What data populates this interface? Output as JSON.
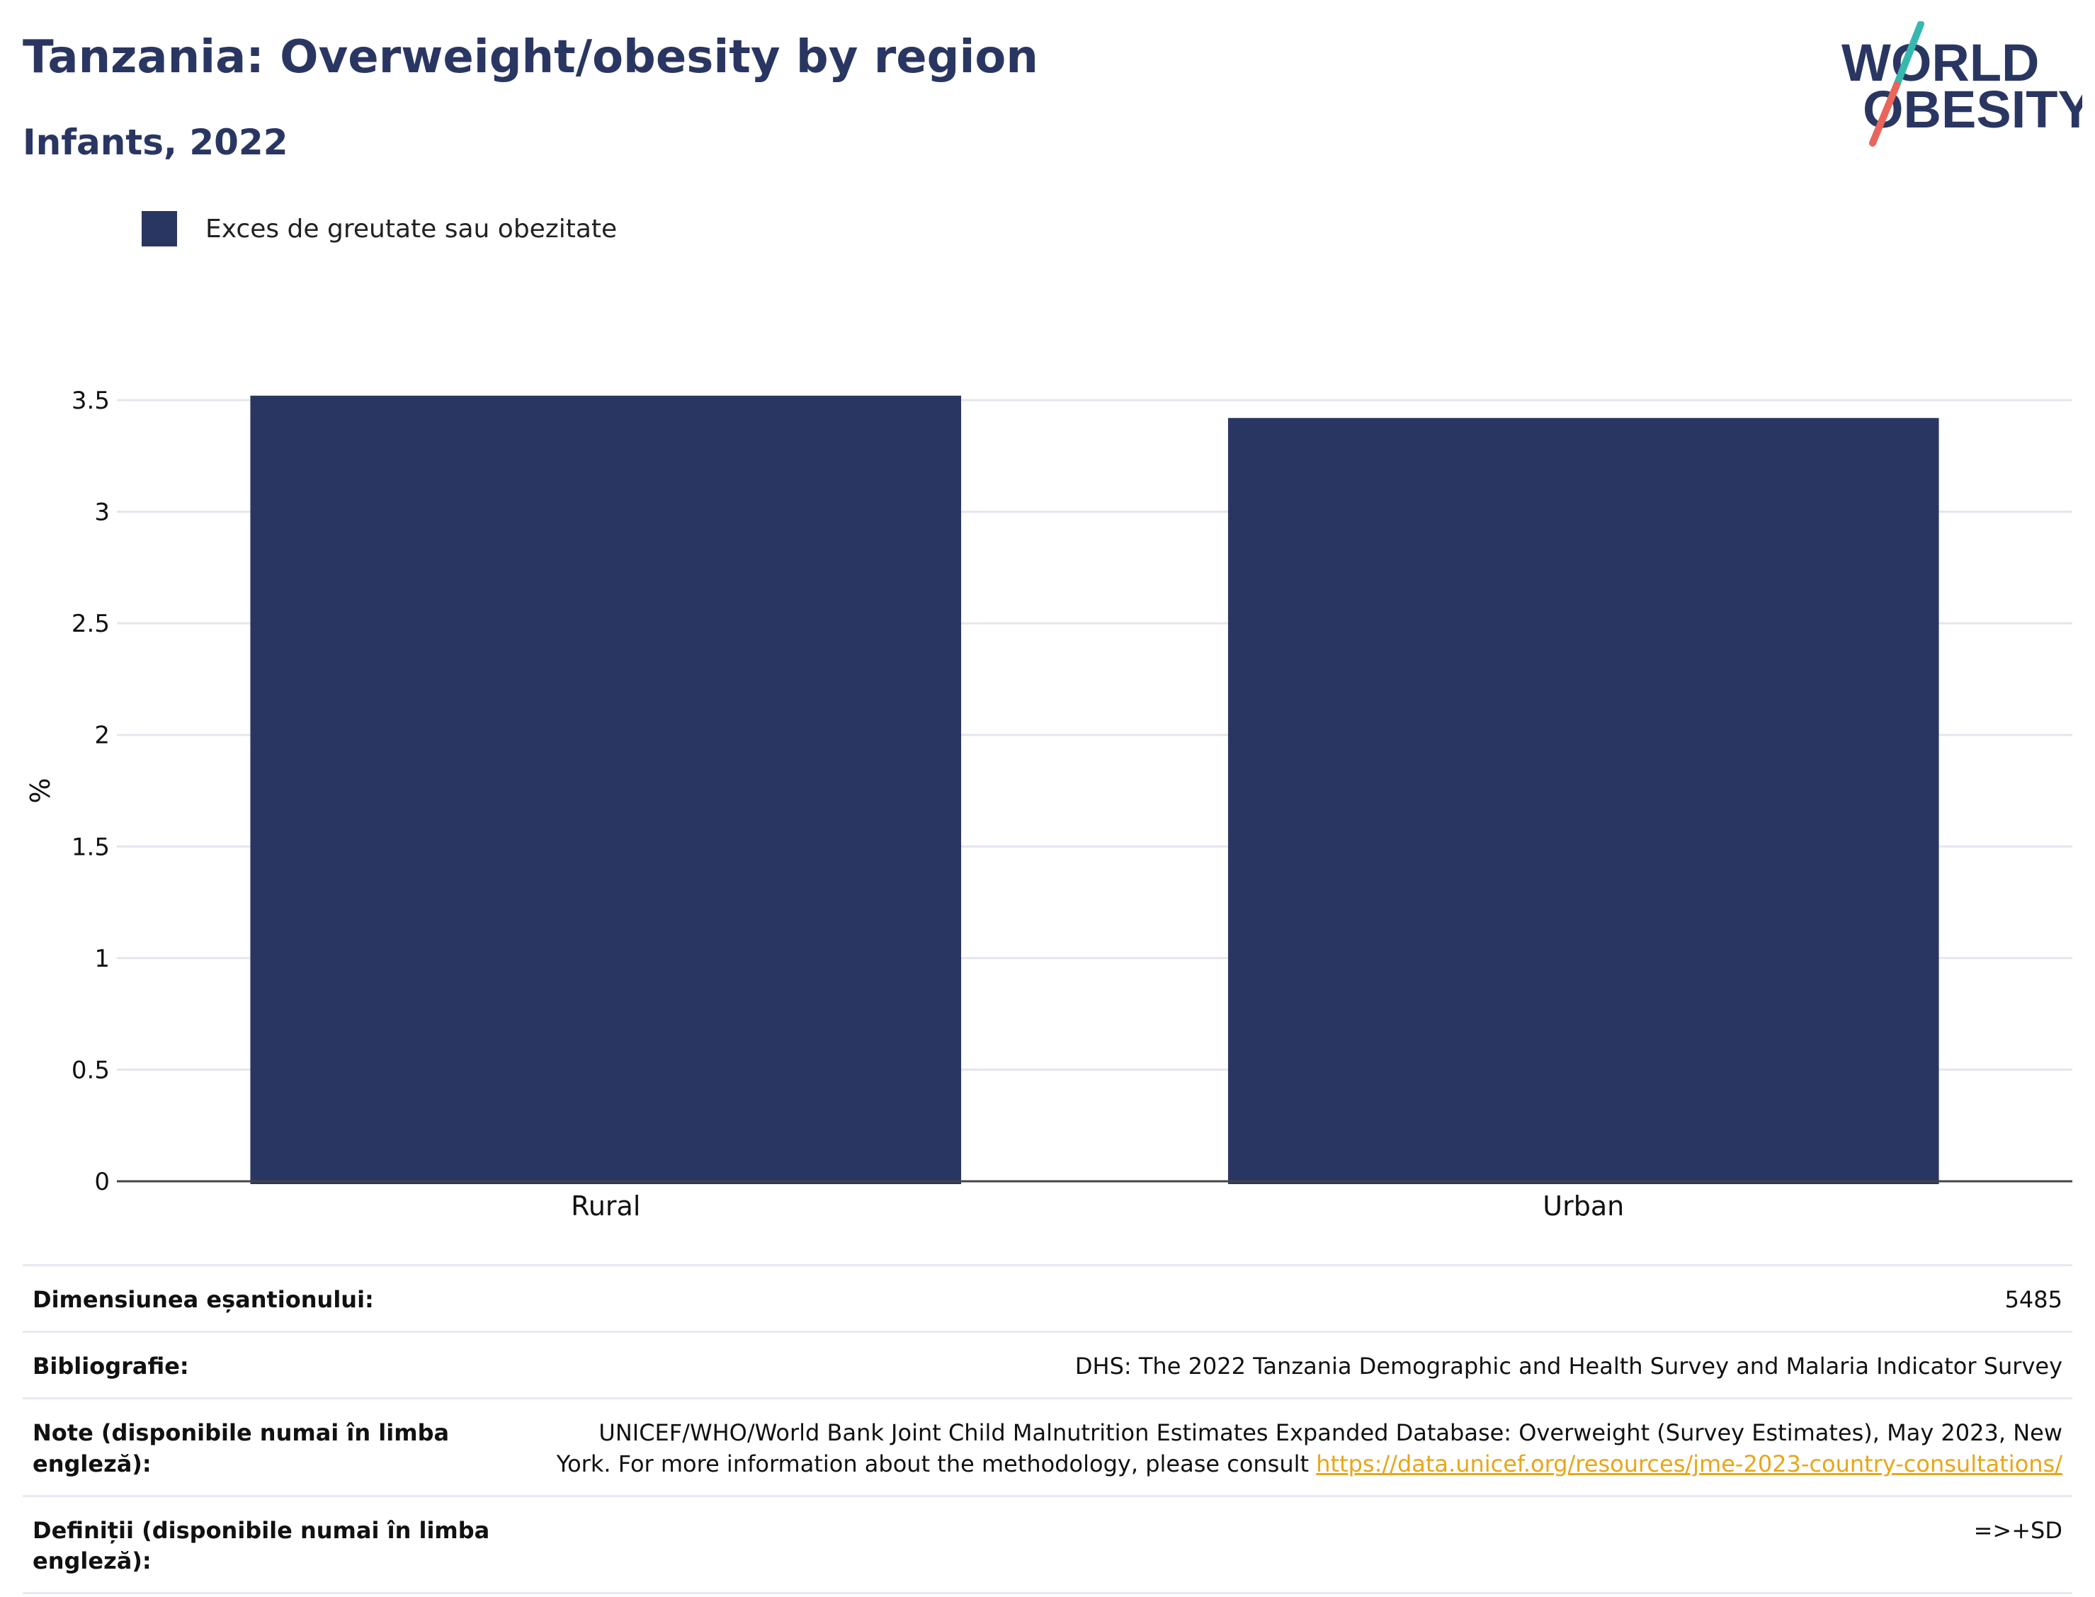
{
  "header": {
    "title": "Tanzania: Overweight/obesity by region",
    "subtitle": "Infants, 2022"
  },
  "logo": {
    "line1": "WORLD",
    "line2": "OBESITY",
    "text_color": "#2a3662",
    "slash_colors": [
      "#36b8b0",
      "#e8665a"
    ]
  },
  "legend": {
    "label": "Exces de greutate sau obezitate",
    "color": "#2a3662"
  },
  "chart_data": {
    "type": "bar",
    "categories": [
      "Rural",
      "Urban"
    ],
    "series": [
      {
        "name": "Exces de greutate sau obezitate",
        "values": [
          3.52,
          3.42
        ],
        "color": "#2a3662"
      }
    ],
    "title": "Tanzania: Overweight/obesity by region",
    "subtitle": "Infants, 2022",
    "xlabel": "",
    "ylabel": "%",
    "ylim": [
      0,
      3.5
    ],
    "yticks": [
      "0",
      "0.5",
      "1",
      "1.5",
      "2",
      "2.5",
      "3",
      "3.5"
    ],
    "grid": true,
    "legend_position": "top-left"
  },
  "info_table": {
    "rows": [
      {
        "key": "Dimensiunea eșantionului:",
        "value": "5485"
      },
      {
        "key": "Bibliografie:",
        "value": "DHS: The 2022 Tanzania Demographic and Health Survey and Malaria Indicator Survey"
      },
      {
        "key": "Note (disponibile numai în limba engleză):",
        "value": "UNICEF/WHO/World Bank Joint Child Malnutrition Estimates Expanded Database: Overweight (Survey Estimates), May 2023, New York. For more information about the methodology, please consult ",
        "link": "https://data.unicef.org/resources/jme-2023-country-consultations/"
      },
      {
        "key": "Definiții (disponibile numai în limba engleză):",
        "value": "=>+SD"
      }
    ]
  }
}
